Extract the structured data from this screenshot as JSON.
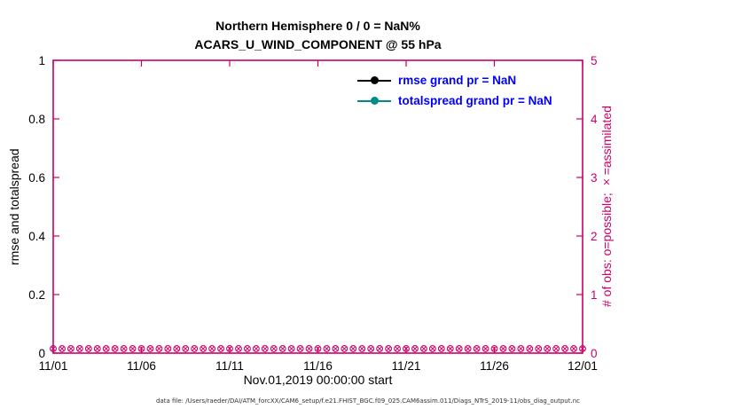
{
  "chart_data": {
    "type": "line",
    "title": "Northern Hemisphere 0 / 0 = NaN%",
    "subtitle": "ACARS_U_WIND_COMPONENT @ 55 hPa",
    "xlabel": "Nov.01,2019 00:00:00 start",
    "x_tick_labels": [
      "11/01",
      "11/06",
      "11/11",
      "11/16",
      "11/21",
      "11/26",
      "12/01"
    ],
    "grid": false,
    "axis_color": "#cc0066",
    "legend_text_color": "#0000ff",
    "left_axis": {
      "label": "rmse and totalspread",
      "range": [
        0,
        1
      ],
      "ticks": [
        0,
        0.2,
        0.4,
        0.6,
        0.8,
        1
      ],
      "tick_labels": [
        "0",
        "0.2",
        "0.4",
        "0.6",
        "0.8",
        "1"
      ]
    },
    "right_axis": {
      "label": "# of obs: o=possible; ×=assimilated",
      "range": [
        0,
        5
      ],
      "ticks": [
        0,
        1,
        2,
        3,
        4,
        5
      ],
      "tick_labels": [
        "0",
        "1",
        "2",
        "3",
        "4",
        "5"
      ]
    },
    "legend": [
      {
        "label": "rmse grand pr = NaN",
        "color": "#000000"
      },
      {
        "label": "totalspread grand pr = NaN",
        "color": "#008b8b"
      }
    ],
    "series": [
      {
        "name": "rmse",
        "values": null,
        "note": "all NaN, no line plotted"
      },
      {
        "name": "totalspread",
        "values": null,
        "note": "all NaN, no line plotted"
      },
      {
        "name": "obs_possible",
        "marker": "o",
        "constant_value": 0,
        "count": 61,
        "axis": "right"
      },
      {
        "name": "obs_assimilated",
        "marker": "x",
        "constant_value": 0,
        "count": 61,
        "axis": "right"
      }
    ],
    "legend_position": "upper right inside",
    "footer": "data file: /Users/raeder/DAI/ATM_forcXX/CAM6_setup/f.e21.FHIST_BGC.f09_025.CAM6assim.011/Diags_NTrS_2019-11/obs_diag_output.nc"
  }
}
